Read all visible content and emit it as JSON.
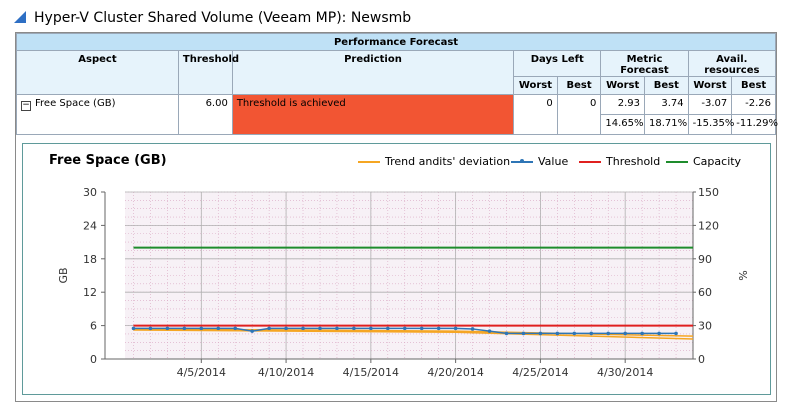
{
  "window": {
    "title": "Hyper-V Cluster Shared Volume (Veeam MP): Newsmb"
  },
  "table": {
    "group_header": "Performance Forecast",
    "columns": {
      "aspect": "Aspect",
      "threshold": "Threshold",
      "prediction": "Prediction",
      "days_left": "Days Left",
      "metric_forecast": "Metric Forecast",
      "avail_resources": "Avail. resources"
    },
    "subcolumns": {
      "worst": "Worst",
      "best": "Best"
    },
    "row": {
      "aspect": "Free Space (GB)",
      "expander": "−",
      "threshold": "6.00",
      "prediction": "Threshold is achieved",
      "prediction_color": "#f25533",
      "days_worst": "0",
      "days_best": "0",
      "metric_worst": "2.93",
      "metric_best": "3.74",
      "metric_worst_pct": "14.65%",
      "metric_best_pct": "18.71%",
      "avail_worst": "-3.07",
      "avail_best": "-2.26",
      "avail_worst_pct": "-15.35%",
      "avail_best_pct": "-11.29%"
    }
  },
  "chart_data": {
    "type": "line",
    "title": "Free Space (GB)",
    "ylabel": "GB",
    "y2label": "%",
    "ylim": [
      0,
      30
    ],
    "y2lim": [
      0,
      150
    ],
    "yticks": [
      "0",
      "6",
      "12",
      "18",
      "24",
      "30"
    ],
    "y2ticks": [
      "0",
      "30",
      "60",
      "90",
      "120",
      "150"
    ],
    "xticks": [
      "4/5/2014",
      "4/10/2014",
      "4/15/2014",
      "4/20/2014",
      "4/25/2014",
      "4/30/2014"
    ],
    "xtick_days": [
      5,
      10,
      15,
      20,
      25,
      30
    ],
    "xlim": [
      0.5,
      34
    ],
    "legend_position": "top-right",
    "grid": true,
    "series": [
      {
        "name": "Trend andits' deviation",
        "color": "#f5a623",
        "x": [
          1,
          20,
          34
        ],
        "values": [
          5.4,
          5.0,
          4.1
        ],
        "lower": [
          5.2,
          4.8,
          3.6
        ]
      },
      {
        "name": "Value",
        "color": "#2e75b6",
        "x": [
          1,
          2,
          3,
          4,
          5,
          6,
          7,
          8,
          9,
          10,
          11,
          12,
          13,
          14,
          15,
          16,
          17,
          18,
          19,
          20,
          21,
          22,
          23,
          24,
          25,
          26,
          27,
          28,
          29,
          30,
          31,
          32,
          33
        ],
        "values": [
          5.5,
          5.5,
          5.5,
          5.5,
          5.5,
          5.5,
          5.5,
          5.0,
          5.5,
          5.5,
          5.5,
          5.5,
          5.5,
          5.5,
          5.5,
          5.5,
          5.5,
          5.5,
          5.5,
          5.5,
          5.4,
          5.0,
          4.6,
          4.6,
          4.6,
          4.6,
          4.6,
          4.6,
          4.6,
          4.6,
          4.6,
          4.6,
          4.6
        ]
      },
      {
        "name": "Threshold",
        "color": "#e0201f",
        "x": [
          1,
          34
        ],
        "values": [
          6,
          6
        ]
      },
      {
        "name": "Capacity",
        "color": "#1e8c2c",
        "x": [
          1,
          34
        ],
        "values": [
          20,
          20
        ]
      }
    ]
  }
}
